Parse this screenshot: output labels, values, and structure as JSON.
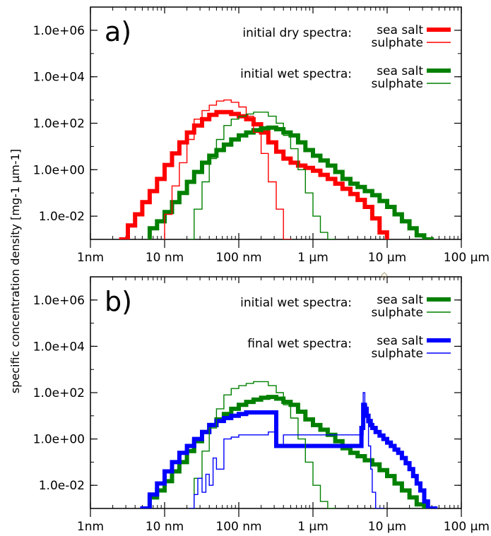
{
  "ylabel": "specific concentration density [mg-1 μm-1]",
  "chart_data": [
    {
      "type": "line",
      "panel_label": "a)",
      "x_scale": "log",
      "y_scale": "log",
      "xlim_um": [
        0.001,
        100
      ],
      "ylim": [
        0.001,
        10000000.0
      ],
      "x_tick_values_um": [
        0.001,
        0.01,
        0.1,
        1,
        10,
        100
      ],
      "x_tick_labels": [
        "1nm",
        "10 nm",
        "100 nm",
        "1 μm",
        "10 μm",
        "100 μm"
      ],
      "y_tick_values": [
        0.01,
        1,
        100,
        10000,
        1000000
      ],
      "y_tick_labels": [
        "1.0e-02",
        "1.0e+00",
        "1.0e+02",
        "1.0e+04",
        "1.0e+06"
      ],
      "legend_groups": [
        {
          "title": "initial dry spectra:",
          "entries": [
            "sea salt",
            "sulphate"
          ]
        },
        {
          "title": "initial wet spectra:",
          "entries": [
            "sea salt",
            "sulphate"
          ]
        }
      ],
      "series": [
        {
          "name": "sea salt",
          "group": "initial dry spectra",
          "color": "#ff0000",
          "weight": "thick",
          "x": [
            0.0026,
            0.0032,
            0.004,
            0.005,
            0.0063,
            0.0079,
            0.01,
            0.0126,
            0.0158,
            0.02,
            0.025,
            0.032,
            0.04,
            0.05,
            0.063,
            0.079,
            0.1,
            0.126,
            0.158,
            0.2,
            0.25,
            0.32,
            0.4,
            0.5,
            0.63,
            0.79,
            1,
            1.26,
            1.58,
            2,
            2.5,
            3.2,
            4,
            5,
            6.3,
            7.9
          ],
          "y": [
            0.001,
            0.004,
            0.012,
            0.04,
            0.12,
            0.4,
            1.6,
            5,
            15,
            40,
            80,
            150,
            230,
            300,
            300,
            250,
            200,
            150,
            90,
            40,
            15,
            6,
            3,
            2,
            1.5,
            1.2,
            0.9,
            0.6,
            0.4,
            0.25,
            0.15,
            0.09,
            0.05,
            0.025,
            0.008,
            0.002
          ]
        },
        {
          "name": "sulphate",
          "group": "initial dry spectra",
          "color": "#ff0000",
          "weight": "thin",
          "x": [
            0.01,
            0.0126,
            0.0158,
            0.02,
            0.025,
            0.032,
            0.04,
            0.05,
            0.063,
            0.079,
            0.1,
            0.126,
            0.158,
            0.2,
            0.25,
            0.32,
            0.4
          ],
          "y": [
            0.012,
            0.2,
            2,
            20,
            150,
            350,
            600,
            900,
            1000,
            800,
            500,
            200,
            40,
            5,
            0.3,
            0.02,
            0.001
          ]
        },
        {
          "name": "sea salt",
          "group": "initial wet spectra",
          "color": "#008000",
          "weight": "thick",
          "x": [
            0.0063,
            0.0079,
            0.01,
            0.0126,
            0.0158,
            0.02,
            0.025,
            0.032,
            0.04,
            0.05,
            0.063,
            0.079,
            0.1,
            0.126,
            0.158,
            0.2,
            0.25,
            0.32,
            0.4,
            0.5,
            0.63,
            0.79,
            1,
            1.26,
            1.58,
            2,
            2.5,
            3.2,
            4,
            5,
            6.3,
            7.9,
            10,
            12.6,
            15.8,
            20,
            25,
            31.6
          ],
          "y": [
            0.003,
            0.006,
            0.015,
            0.04,
            0.1,
            0.3,
            0.8,
            2,
            4,
            7,
            12,
            20,
            30,
            40,
            50,
            60,
            65,
            55,
            40,
            30,
            15,
            7,
            4,
            2.5,
            1.5,
            0.8,
            0.4,
            0.25,
            0.18,
            0.12,
            0.08,
            0.045,
            0.025,
            0.012,
            0.006,
            0.003,
            0.0015,
            0.001
          ]
        },
        {
          "name": "sulphate",
          "group": "initial wet spectra",
          "color": "#008000",
          "weight": "thin",
          "x": [
            0.022,
            0.025,
            0.032,
            0.04,
            0.05,
            0.063,
            0.079,
            0.1,
            0.126,
            0.158,
            0.2,
            0.25,
            0.32,
            0.4,
            0.5,
            0.63,
            0.79,
            1,
            1.26,
            1.58
          ],
          "y": [
            0.001,
            0.02,
            0.3,
            3,
            20,
            80,
            150,
            200,
            250,
            300,
            300,
            200,
            100,
            30,
            8,
            1,
            0.1,
            0.01,
            0.002,
            0.001
          ]
        }
      ]
    },
    {
      "type": "line",
      "panel_label": "b)",
      "x_scale": "log",
      "y_scale": "log",
      "xlim_um": [
        0.001,
        100
      ],
      "ylim": [
        0.001,
        10000000.0
      ],
      "x_tick_values_um": [
        0.001,
        0.01,
        0.1,
        1,
        10,
        100
      ],
      "x_tick_labels": [
        "1nm",
        "10 nm",
        "100 nm",
        "1 μm",
        "10 μm",
        "100 μm"
      ],
      "y_tick_values": [
        0.01,
        1,
        100,
        10000,
        1000000
      ],
      "y_tick_labels": [
        "1.0e-02",
        "1.0e+00",
        "1.0e+02",
        "1.0e+04",
        "1.0e+06"
      ],
      "legend_groups": [
        {
          "title": "initial wet spectra:",
          "entries": [
            "sea salt",
            "sulphate"
          ]
        },
        {
          "title": "final wet spectra:",
          "entries": [
            "sea salt",
            "sulphate"
          ]
        }
      ],
      "series": [
        {
          "name": "sea salt",
          "group": "initial wet spectra",
          "color": "#008000",
          "weight": "thick",
          "x": [
            0.0063,
            0.0079,
            0.01,
            0.0126,
            0.0158,
            0.02,
            0.025,
            0.032,
            0.04,
            0.05,
            0.063,
            0.079,
            0.1,
            0.126,
            0.158,
            0.2,
            0.25,
            0.32,
            0.4,
            0.5,
            0.63,
            0.79,
            1,
            1.26,
            1.58,
            2,
            2.5,
            3.2,
            4,
            5,
            6.3,
            7.9,
            10,
            12.6,
            15.8,
            20,
            25,
            31.6
          ],
          "y": [
            0.003,
            0.006,
            0.015,
            0.04,
            0.1,
            0.3,
            0.8,
            2,
            4,
            7,
            12,
            20,
            30,
            40,
            50,
            60,
            65,
            55,
            40,
            30,
            15,
            7,
            4,
            2.5,
            1.5,
            0.8,
            0.4,
            0.25,
            0.18,
            0.12,
            0.08,
            0.045,
            0.025,
            0.012,
            0.006,
            0.003,
            0.0015,
            0.001
          ]
        },
        {
          "name": "sulphate",
          "group": "initial wet spectra",
          "color": "#008000",
          "weight": "thin",
          "x": [
            0.022,
            0.025,
            0.032,
            0.04,
            0.05,
            0.063,
            0.079,
            0.1,
            0.126,
            0.158,
            0.2,
            0.25,
            0.32,
            0.4,
            0.5,
            0.63,
            0.79,
            1,
            1.26,
            1.58
          ],
          "y": [
            0.001,
            0.02,
            0.3,
            3,
            20,
            80,
            150,
            200,
            250,
            300,
            300,
            200,
            100,
            30,
            8,
            1,
            0.1,
            0.01,
            0.002,
            0.001
          ]
        },
        {
          "name": "sea salt",
          "group": "final wet spectra",
          "color": "#0000ff",
          "weight": "thick",
          "x": [
            0.005,
            0.0063,
            0.0079,
            0.01,
            0.0126,
            0.0158,
            0.02,
            0.025,
            0.032,
            0.04,
            0.05,
            0.063,
            0.079,
            0.1,
            0.126,
            0.158,
            0.2,
            0.32,
            4.5,
            4.75,
            5,
            5.3,
            5.6,
            6,
            6.3,
            7,
            7.9,
            8.9,
            10,
            11.2,
            12.6,
            14.1,
            15.8,
            17.8,
            20,
            22.4,
            25,
            28,
            31.6,
            35.5
          ],
          "y": [
            0.001,
            0.004,
            0.012,
            0.04,
            0.1,
            0.25,
            0.5,
            1,
            2,
            4,
            6,
            8,
            10,
            12,
            14,
            14,
            14,
            0.5,
            3,
            30,
            20,
            10,
            6,
            4,
            3,
            2,
            1.4,
            1,
            0.7,
            0.5,
            0.35,
            0.25,
            0.15,
            0.09,
            0.05,
            0.025,
            0.012,
            0.006,
            0.002,
            0.001
          ]
        },
        {
          "name": "sulphate",
          "group": "final wet spectra",
          "color": "#0000ff",
          "weight": "thin",
          "x": [
            0.022,
            0.025,
            0.028,
            0.032,
            0.036,
            0.04,
            0.045,
            0.05,
            0.063,
            0.079,
            0.1,
            0.126,
            0.158,
            0.2,
            0.25,
            0.32,
            0.4,
            4.5,
            4.75,
            5,
            5.3,
            5.6,
            6,
            6.3,
            7
          ],
          "y": [
            0.001,
            0.004,
            0.02,
            0.005,
            0.03,
            0.01,
            0.15,
            0.05,
            1,
            1.2,
            1.5,
            1.5,
            1.5,
            1.5,
            2,
            0.5,
            1.5,
            1.5,
            100,
            30,
            5,
            0.5,
            0.05,
            0.005,
            0.001
          ]
        }
      ]
    }
  ]
}
